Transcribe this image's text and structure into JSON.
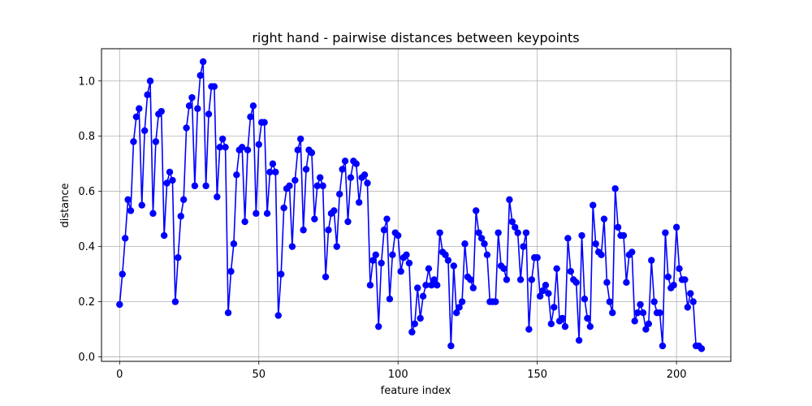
{
  "chart_data": {
    "type": "line",
    "title": "right hand - pairwise distances between keypoints",
    "xlabel": "feature index",
    "ylabel": "distance",
    "xlim": [
      -6.5,
      219.5
    ],
    "ylim": [
      -0.016,
      1.117
    ],
    "xticks": [
      0,
      50,
      100,
      150,
      200
    ],
    "yticks": [
      0.0,
      0.2,
      0.4,
      0.6,
      0.8,
      1.0
    ],
    "xtick_labels": [
      "0",
      "50",
      "100",
      "150",
      "200"
    ],
    "ytick_labels": [
      "0.0",
      "0.2",
      "0.4",
      "0.6",
      "0.8",
      "1.0"
    ],
    "grid": true,
    "marker": "circle",
    "color": "#0000ff",
    "series": [
      {
        "x": [
          0,
          1,
          2,
          3,
          4,
          5,
          6,
          7,
          8,
          9,
          10,
          11,
          12,
          13,
          14,
          15,
          16,
          17,
          18,
          19,
          20,
          21,
          22,
          23,
          24,
          25,
          26,
          27,
          28,
          29,
          30,
          31,
          32,
          33,
          34,
          35,
          36,
          37,
          38,
          39,
          40,
          41,
          42,
          43,
          44,
          45,
          46,
          47,
          48,
          49,
          50,
          51,
          52,
          53,
          54,
          55,
          56,
          57,
          58,
          59,
          60,
          61,
          62,
          63,
          64,
          65,
          66,
          67,
          68,
          69,
          70,
          71,
          72,
          73,
          74,
          75,
          76,
          77,
          78,
          79,
          80,
          81,
          82,
          83,
          84,
          85,
          86,
          87,
          88,
          89,
          90,
          91,
          92,
          93,
          94,
          95,
          96,
          97,
          98,
          99,
          100,
          101,
          102,
          103,
          104,
          105,
          106,
          107,
          108,
          109,
          110,
          111,
          112,
          113,
          114,
          115,
          116,
          117,
          118,
          119,
          120,
          121,
          122,
          123,
          124,
          125,
          126,
          127,
          128,
          129,
          130,
          131,
          132,
          133,
          134,
          135,
          136,
          137,
          138,
          139,
          140,
          141,
          142,
          143,
          144,
          145,
          146,
          147,
          148,
          149,
          150,
          151,
          152,
          153,
          154,
          155,
          156,
          157,
          158,
          159,
          160,
          161,
          162,
          163,
          164,
          165,
          166,
          167,
          168,
          169,
          170,
          171,
          172,
          173,
          174,
          175,
          176,
          177,
          178,
          179,
          180,
          181,
          182,
          183,
          184,
          185,
          186,
          187,
          188,
          189,
          190,
          191,
          192,
          193,
          194,
          195,
          196,
          197,
          198,
          199,
          200,
          201,
          202,
          203,
          204,
          205,
          206,
          207,
          208,
          209
        ],
        "y": [
          0.19,
          0.3,
          0.43,
          0.57,
          0.53,
          0.78,
          0.87,
          0.9,
          0.55,
          0.82,
          0.95,
          1.0,
          0.52,
          0.78,
          0.88,
          0.89,
          0.44,
          0.63,
          0.67,
          0.64,
          0.2,
          0.36,
          0.51,
          0.57,
          0.83,
          0.91,
          0.94,
          0.62,
          0.9,
          1.02,
          1.07,
          0.62,
          0.88,
          0.98,
          0.98,
          0.58,
          0.76,
          0.79,
          0.76,
          0.16,
          0.31,
          0.41,
          0.66,
          0.75,
          0.76,
          0.49,
          0.75,
          0.87,
          0.91,
          0.52,
          0.77,
          0.85,
          0.85,
          0.52,
          0.67,
          0.7,
          0.67,
          0.15,
          0.3,
          0.54,
          0.61,
          0.62,
          0.4,
          0.64,
          0.75,
          0.79,
          0.46,
          0.68,
          0.75,
          0.74,
          0.5,
          0.62,
          0.65,
          0.62,
          0.29,
          0.46,
          0.52,
          0.53,
          0.4,
          0.59,
          0.68,
          0.71,
          0.49,
          0.65,
          0.71,
          0.7,
          0.56,
          0.65,
          0.66,
          0.63,
          0.26,
          0.35,
          0.37,
          0.11,
          0.34,
          0.46,
          0.5,
          0.21,
          0.37,
          0.45,
          0.44,
          0.31,
          0.36,
          0.37,
          0.34,
          0.09,
          0.12,
          0.25,
          0.14,
          0.22,
          0.26,
          0.32,
          0.26,
          0.28,
          0.26,
          0.45,
          0.38,
          0.37,
          0.35,
          0.04,
          0.33,
          0.16,
          0.18,
          0.2,
          0.41,
          0.29,
          0.28,
          0.25,
          0.53,
          0.45,
          0.43,
          0.41,
          0.37,
          0.2,
          0.2,
          0.2,
          0.45,
          0.33,
          0.32,
          0.28,
          0.57,
          0.49,
          0.47,
          0.45,
          0.28,
          0.4,
          0.45,
          0.1,
          0.28,
          0.36,
          0.36,
          0.22,
          0.24,
          0.26,
          0.23,
          0.12,
          0.18,
          0.32,
          0.13,
          0.14,
          0.11,
          0.43,
          0.31,
          0.28,
          0.27,
          0.06,
          0.44,
          0.21,
          0.14,
          0.11,
          0.55,
          0.41,
          0.38,
          0.37,
          0.5,
          0.27,
          0.2,
          0.16,
          0.61,
          0.47,
          0.44,
          0.44,
          0.27,
          0.37,
          0.38,
          0.13,
          0.16,
          0.19,
          0.16,
          0.1,
          0.12,
          0.35,
          0.2,
          0.16,
          0.16,
          0.04,
          0.45,
          0.29,
          0.25,
          0.26,
          0.47,
          0.32,
          0.28,
          0.28,
          0.18,
          0.23,
          0.2,
          0.04,
          0.04,
          0.03
        ]
      }
    ]
  }
}
